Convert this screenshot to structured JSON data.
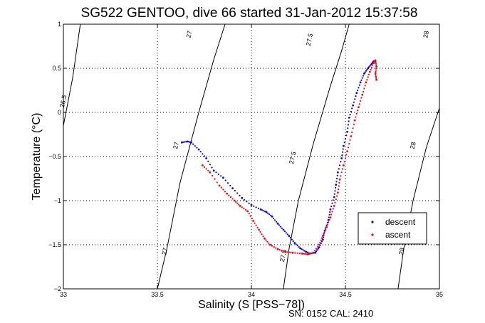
{
  "chart_data": {
    "type": "scatter",
    "title": "SG522 GENTOO, dive 66 started 31-Jan-2012 15:37:58",
    "xlabel": "Salinity (S [PSS−78])",
    "ylabel": "Temperature (°C)",
    "xlim": [
      33,
      35
    ],
    "ylim": [
      -2,
      1
    ],
    "xticks": [
      "33",
      "33.5",
      "34",
      "34.5",
      "35"
    ],
    "yticks": [
      "−2",
      "−1.5",
      "−1",
      "−0.5",
      "0",
      "0.5",
      "1"
    ],
    "grid": true,
    "legend_position": "bottom-right",
    "footer": "SN: 0152  CAL: 2410",
    "density_contours": [
      {
        "label": "26.5",
        "points": [
          [
            33.0,
            -0.15
          ],
          [
            33.05,
            0.4
          ],
          [
            33.07,
            0.7
          ],
          [
            33.09,
            1.0
          ]
        ]
      },
      {
        "label": "27",
        "points": [
          [
            33.5,
            -2.0
          ],
          [
            33.55,
            -1.55
          ],
          [
            33.62,
            -0.8
          ],
          [
            33.72,
            0.0
          ],
          [
            33.8,
            0.6
          ],
          [
            33.86,
            1.0
          ]
        ]
      },
      {
        "label": "27.5",
        "points": [
          [
            34.17,
            -2.0
          ],
          [
            34.2,
            -1.55
          ],
          [
            34.25,
            -1.0
          ],
          [
            34.33,
            -0.35
          ],
          [
            34.42,
            0.3
          ],
          [
            34.48,
            0.7
          ],
          [
            34.52,
            1.0
          ]
        ]
      },
      {
        "label": "28",
        "points": [
          [
            34.78,
            -2.0
          ],
          [
            34.81,
            -1.55
          ],
          [
            34.86,
            -1.0
          ],
          [
            34.93,
            -0.4
          ],
          [
            35.0,
            0.05
          ]
        ]
      }
    ],
    "contour_label_marks": [
      {
        "text": "26.5",
        "x": 33.01,
        "y": 0.12
      },
      {
        "text": "27",
        "x": 33.68,
        "y": 0.88
      },
      {
        "text": "27.5",
        "x": 34.32,
        "y": 0.82
      },
      {
        "text": "28",
        "x": 34.94,
        "y": 0.88
      },
      {
        "text": "27",
        "x": 33.61,
        "y": -0.38
      },
      {
        "text": "27.5",
        "x": 34.23,
        "y": -0.52
      },
      {
        "text": "28",
        "x": 34.87,
        "y": -0.38
      },
      {
        "text": "27",
        "x": 33.55,
        "y": -1.58
      },
      {
        "text": "27.5",
        "x": 34.18,
        "y": -1.63
      },
      {
        "text": "28",
        "x": 34.81,
        "y": -1.58
      }
    ],
    "series": [
      {
        "name": "descent",
        "color": "#0000ff",
        "points": [
          [
            33.63,
            -0.34
          ],
          [
            33.66,
            -0.33
          ],
          [
            33.68,
            -0.34
          ],
          [
            33.72,
            -0.42
          ],
          [
            33.76,
            -0.52
          ],
          [
            33.8,
            -0.66
          ],
          [
            33.85,
            -0.74
          ],
          [
            33.9,
            -0.86
          ],
          [
            33.95,
            -0.97
          ],
          [
            34.0,
            -1.05
          ],
          [
            34.05,
            -1.1
          ],
          [
            34.08,
            -1.13
          ],
          [
            34.11,
            -1.18
          ],
          [
            34.14,
            -1.26
          ],
          [
            34.17,
            -1.33
          ],
          [
            34.2,
            -1.4
          ],
          [
            34.23,
            -1.48
          ],
          [
            34.26,
            -1.54
          ],
          [
            34.29,
            -1.58
          ],
          [
            34.31,
            -1.6
          ],
          [
            34.34,
            -1.59
          ],
          [
            34.36,
            -1.53
          ],
          [
            34.38,
            -1.44
          ],
          [
            34.39,
            -1.34
          ],
          [
            34.41,
            -1.22
          ],
          [
            34.42,
            -1.1
          ],
          [
            34.44,
            -0.96
          ],
          [
            34.45,
            -0.82
          ],
          [
            34.46,
            -0.68
          ],
          [
            34.48,
            -0.52
          ],
          [
            34.49,
            -0.38
          ],
          [
            34.51,
            -0.22
          ],
          [
            34.52,
            -0.06
          ],
          [
            34.54,
            0.08
          ],
          [
            34.56,
            0.22
          ],
          [
            34.58,
            0.34
          ],
          [
            34.6,
            0.44
          ],
          [
            34.62,
            0.5
          ],
          [
            34.64,
            0.55
          ],
          [
            34.65,
            0.58
          ]
        ]
      },
      {
        "name": "ascent",
        "color": "#ff0000",
        "points": [
          [
            33.74,
            -0.6
          ],
          [
            33.78,
            -0.68
          ],
          [
            33.83,
            -0.83
          ],
          [
            33.87,
            -0.92
          ],
          [
            33.91,
            -1.0
          ],
          [
            33.94,
            -1.06
          ],
          [
            33.98,
            -1.12
          ],
          [
            34.01,
            -1.23
          ],
          [
            34.04,
            -1.33
          ],
          [
            34.07,
            -1.43
          ],
          [
            34.1,
            -1.5
          ],
          [
            34.14,
            -1.55
          ],
          [
            34.18,
            -1.58
          ],
          [
            34.22,
            -1.59
          ],
          [
            34.27,
            -1.6
          ],
          [
            34.3,
            -1.61
          ],
          [
            34.33,
            -1.59
          ],
          [
            34.36,
            -1.5
          ],
          [
            34.38,
            -1.4
          ],
          [
            34.4,
            -1.3
          ],
          [
            34.42,
            -1.19
          ],
          [
            34.44,
            -1.06
          ],
          [
            34.46,
            -0.91
          ],
          [
            34.47,
            -0.76
          ],
          [
            34.49,
            -0.6
          ],
          [
            34.51,
            -0.44
          ],
          [
            34.53,
            -0.27
          ],
          [
            34.55,
            -0.09
          ],
          [
            34.57,
            0.06
          ],
          [
            34.59,
            0.2
          ],
          [
            34.61,
            0.34
          ],
          [
            34.63,
            0.46
          ],
          [
            34.65,
            0.56
          ],
          [
            34.66,
            0.59
          ],
          [
            34.665,
            0.52
          ],
          [
            34.66,
            0.44
          ],
          [
            34.665,
            0.37
          ]
        ]
      }
    ]
  }
}
